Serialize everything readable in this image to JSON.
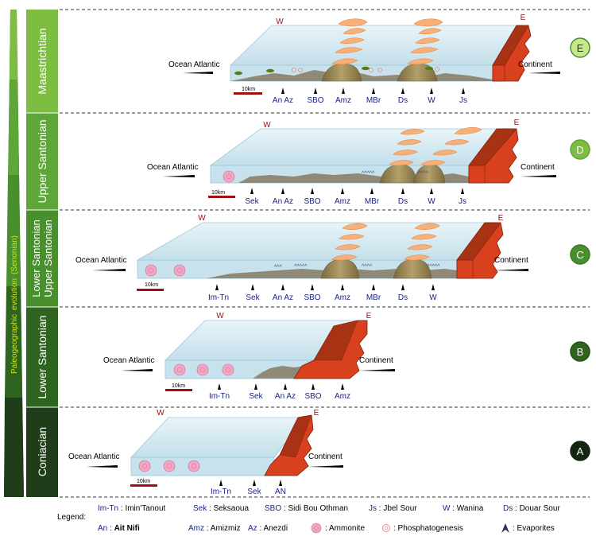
{
  "evolution": {
    "parts": [
      "Paleogeographic",
      "evolution",
      "(Senonian)"
    ]
  },
  "stages": [
    {
      "id": "E",
      "name": "Maastrichtian",
      "color": "#7dbd42"
    },
    {
      "id": "D",
      "name": "Upper Santonian",
      "color": "#5ea53a"
    },
    {
      "id": "C",
      "name_top": "Lower Santonian",
      "name_bottom": "Upper Santonian",
      "color": "#4a8f2e"
    },
    {
      "id": "B",
      "name": "Lower Santonian",
      "color": "#2e6320"
    },
    {
      "id": "A",
      "name": "Coniacian",
      "color": "#1f3d18"
    }
  ],
  "badges": {
    "E": {
      "letter": "E",
      "fill": "#c8e88a",
      "stroke": "#4a8f2e",
      "text_color": "#1f3d18"
    },
    "D": {
      "letter": "D",
      "fill": "#7dbd42",
      "stroke": "#5ea53a",
      "text_color": "#ffffff"
    },
    "C": {
      "letter": "C",
      "fill": "#4a8f2e",
      "stroke": "#3a7a26",
      "text_color": "#ffffff"
    },
    "B": {
      "letter": "B",
      "fill": "#2e6320",
      "stroke": "#244f1a",
      "text_color": "#ffffff"
    },
    "A": {
      "letter": "A",
      "fill": "#15260f",
      "stroke": "#15260f",
      "text_color": "#ffffff"
    }
  },
  "panels": {
    "E": {
      "ocean": "Ocean Atlantic",
      "continent": "Continent",
      "west": "W",
      "east": "E",
      "scale": "10km",
      "localities": [
        "An Az",
        "SBO",
        "Amz",
        "MBr",
        "Ds",
        "W",
        "Js"
      ]
    },
    "D": {
      "ocean": "Ocean Atlantic",
      "continent": "Continent",
      "west": "W",
      "east": "E",
      "scale": "10km",
      "localities": [
        "Sek",
        "An Az",
        "SBO",
        "Amz",
        "MBr",
        "Ds",
        "W",
        "Js"
      ]
    },
    "C": {
      "ocean": "Ocean Atlantic",
      "continent": "Continent",
      "west": "W",
      "east": "E",
      "scale": "10km",
      "localities": [
        "Im-Tn",
        "Sek",
        "An Az",
        "SBO",
        "Amz",
        "MBr",
        "Ds",
        "W"
      ]
    },
    "B": {
      "ocean": "Ocean Atlantic",
      "continent": "Continent",
      "west": "W",
      "east": "E",
      "scale": "10km",
      "localities": [
        "Im-Tn",
        "Sek",
        "An Az",
        "SBO",
        "Amz"
      ]
    },
    "A": {
      "ocean": "Ocean Atlantic",
      "continent": "Continent",
      "west": "W",
      "east": "E",
      "scale": "10km",
      "localities": [
        "Im-Tn",
        "Sek",
        "AN"
      ]
    }
  },
  "legend": {
    "title": "Legend:",
    "row1": [
      {
        "abbr": "Im-Tn",
        "sep": " : ",
        "name": "Imin'Tanout"
      },
      {
        "abbr": "Sek",
        "sep": " : ",
        "name": "Seksaoua"
      },
      {
        "abbr": "SBO",
        "sep": " : ",
        "name": "Sidi Bou Othman"
      },
      {
        "abbr": "Js",
        "sep": " : ",
        "name": "Jbel Sour"
      },
      {
        "abbr": "W",
        "sep": " : ",
        "name": "Wanina"
      },
      {
        "abbr": "Ds",
        "sep": " : ",
        "name": "Douar Sour"
      }
    ],
    "row2": [
      {
        "abbr": "An",
        "sep": " : ",
        "name": "Ait Nifi"
      },
      {
        "abbr": "Amz",
        "sep": " : ",
        "name": "Amizmiz"
      },
      {
        "abbr": "Az",
        "sep": " : ",
        "name": "Anezdi"
      }
    ],
    "symbols": {
      "ammonite": ": Ammonite",
      "phosphate": ": Phosphatogenesis",
      "evaporite": ": Evaporites"
    }
  },
  "colors": {
    "sea_top": "#dfeef4",
    "sea_front": "#c7e2ec",
    "sea_edge": "#9fc7d6",
    "continent": "#d9411e",
    "continent_dark": "#a83214",
    "continent_edge": "#7a1f0c",
    "seafloor": "#8f8a78",
    "seafloor_dark": "#6d6858",
    "mound": "#a38e5a",
    "mound_dark": "#6f5f36",
    "orange": "#f7b07a",
    "orange_edge": "#e08a4a",
    "scalebar": "#a01010",
    "letter_red": "#a01010",
    "navy": "#1a237e"
  }
}
